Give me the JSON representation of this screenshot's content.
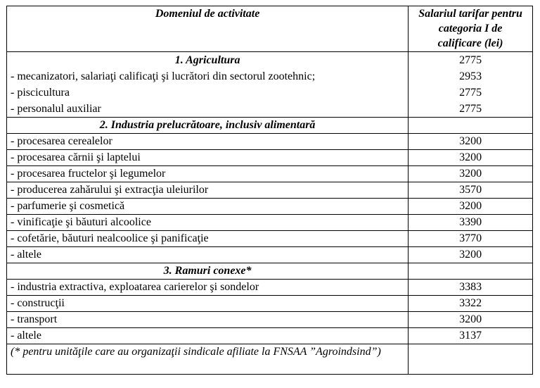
{
  "table": {
    "header": {
      "col1": "Domeniul de activitate",
      "col2_lines": [
        "Salariul tarifar pentru",
        "categoria I de",
        "calificare (lei)"
      ]
    },
    "agri": {
      "labels": [
        "1. Agricultura",
        "- mecanizatori, salariaţi calificaţi şi lucrători din sectorul zootehnic;",
        "- piscicultura",
        "- personalul auxiliar"
      ],
      "values": [
        "2775",
        "2953",
        "2775",
        "2775"
      ]
    },
    "section2_title": "2. Industria prelucrătoare, inclusiv alimentară",
    "section2_rows": [
      {
        "label": "- procesarea cerealelor",
        "value": "3200"
      },
      {
        "label": "- procesarea cărnii şi laptelui",
        "value": "3200"
      },
      {
        "label": "- procesarea fructelor şi legumelor",
        "value": "3200"
      },
      {
        "label": "- producerea zahărului şi extracţia uleiurilor",
        "value": "3570"
      },
      {
        "label": "- parfumerie şi cosmetică",
        "value": "3200"
      },
      {
        "label": "- vinificaţie şi băuturi alcoolice",
        "value": "3390"
      },
      {
        "label": "- cofetărie, băuturi nealcoolice şi panificaţie",
        "value": "3770"
      },
      {
        "label": "- altele",
        "value": "3200"
      }
    ],
    "section3_title": "3. Ramuri conexe*",
    "section3_rows": [
      {
        "label": "- industria extractiva, exploatarea carierelor şi sondelor",
        "value": "3383"
      },
      {
        "label": "- construcţii",
        "value": "3322"
      },
      {
        "label": "- transport",
        "value": "3200"
      },
      {
        "label": "- altele",
        "value": "3137"
      }
    ],
    "footnote": "(* pentru unităţile care au organizaţii sindicale afiliate la FNSAA ”Agroindsind”)"
  }
}
